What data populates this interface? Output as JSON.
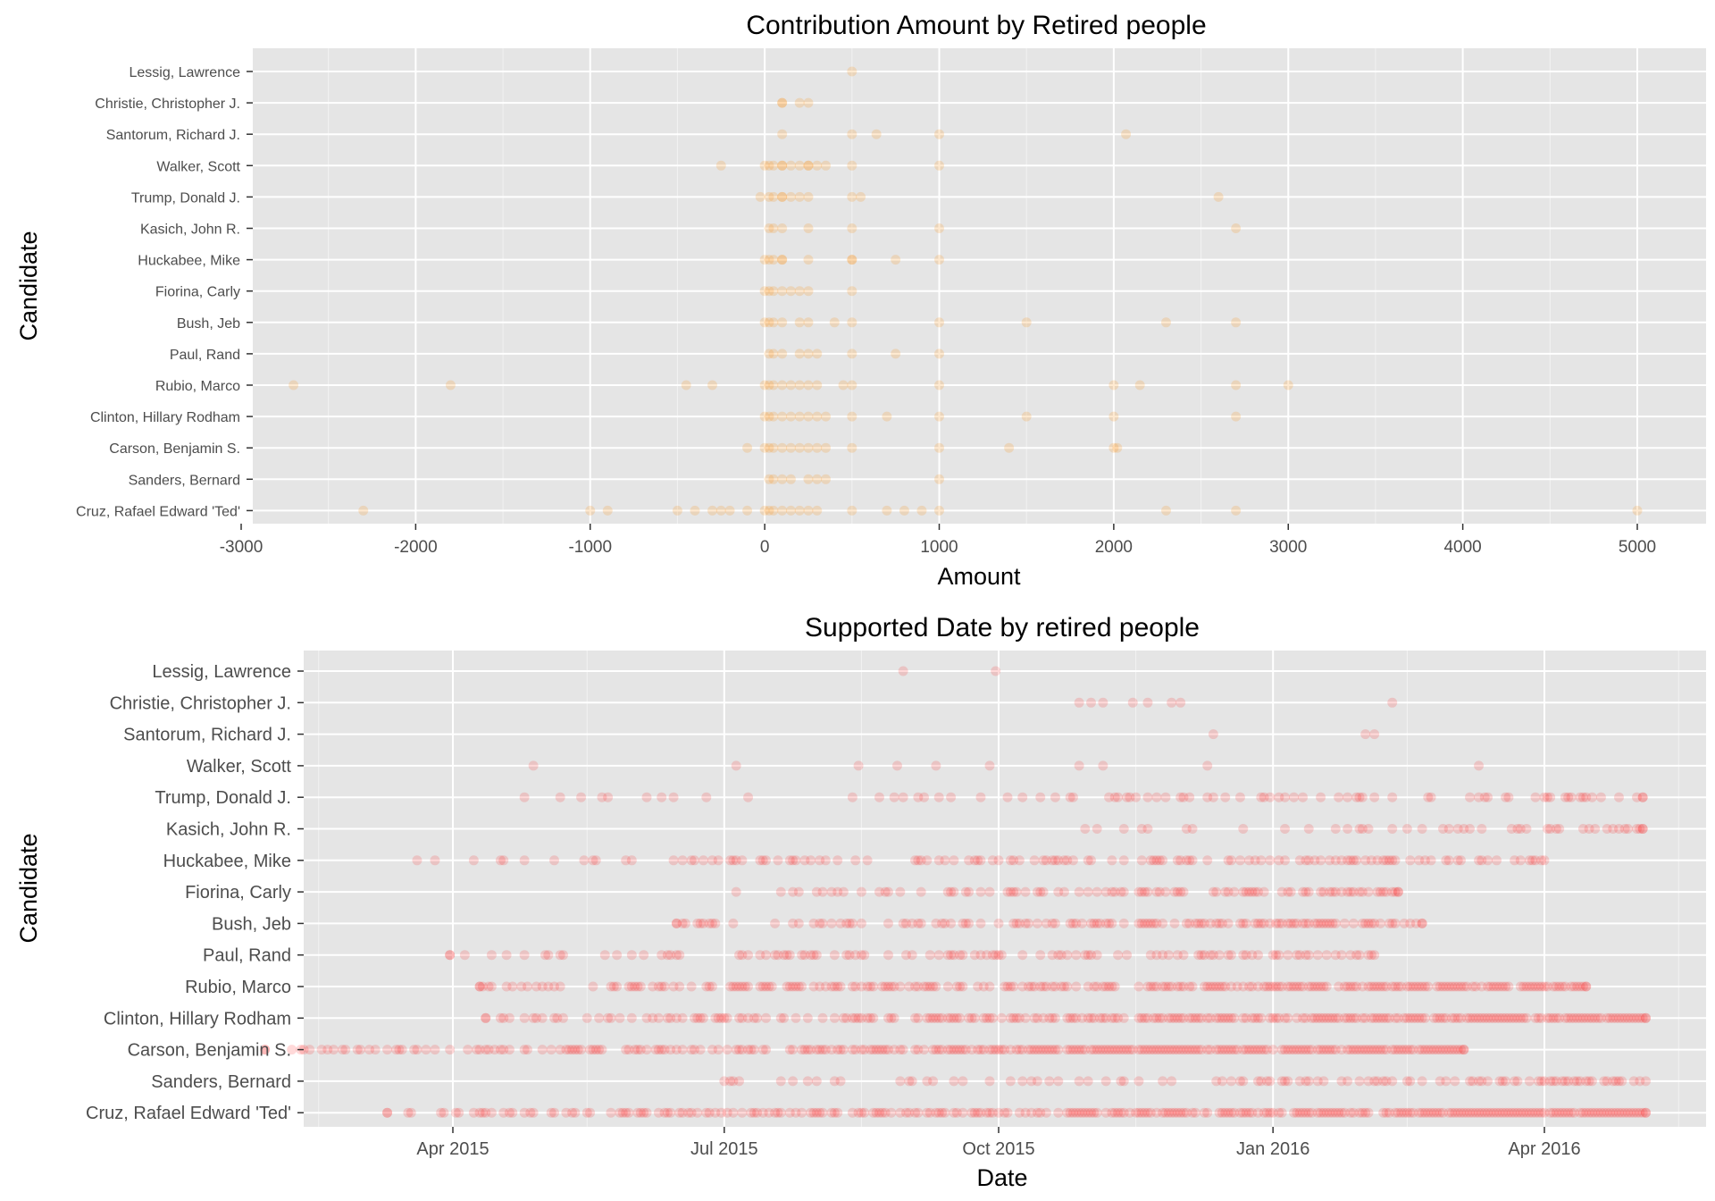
{
  "chart_data": [
    {
      "type": "scatter",
      "title": "Contribution Amount by Retired people",
      "xlabel": "Amount",
      "ylabel": "Candidate",
      "xlim": [
        -3000,
        5000
      ],
      "xticks": [
        -3000,
        -2000,
        -1000,
        0,
        1000,
        2000,
        3000,
        4000,
        5000
      ],
      "grid": true,
      "point_color": "#ff8c00",
      "categories": [
        "Cruz, Rafael Edward 'Ted'",
        "Sanders, Bernard",
        "Carson, Benjamin S.",
        "Clinton, Hillary Rodham",
        "Rubio, Marco",
        "Paul, Rand",
        "Bush, Jeb",
        "Fiorina, Carly",
        "Huckabee, Mike",
        "Kasich, John R.",
        "Trump, Donald J.",
        "Walker, Scott",
        "Santorum, Richard J.",
        "Christie, Christopher J.",
        "Lessig, Lawrence"
      ],
      "points": [
        {
          "candidate": "Lessig, Lawrence",
          "x": [
            500
          ]
        },
        {
          "candidate": "Christie, Christopher J.",
          "x": [
            100,
            100,
            200,
            250
          ]
        },
        {
          "candidate": "Santorum, Richard J.",
          "x": [
            100,
            500,
            640,
            1000,
            2070
          ]
        },
        {
          "candidate": "Walker, Scott",
          "x": [
            -250,
            0,
            25,
            50,
            100,
            100,
            150,
            200,
            250,
            250,
            300,
            350,
            500,
            1000
          ]
        },
        {
          "candidate": "Trump, Donald J.",
          "x": [
            -25,
            25,
            50,
            100,
            100,
            150,
            200,
            250,
            500,
            550,
            2600
          ]
        },
        {
          "candidate": "Kasich, John R.",
          "x": [
            25,
            50,
            100,
            250,
            500,
            1000,
            2700
          ]
        },
        {
          "candidate": "Huckabee, Mike",
          "x": [
            0,
            25,
            50,
            100,
            100,
            250,
            500,
            500,
            750,
            1000
          ]
        },
        {
          "candidate": "Fiorina, Carly",
          "x": [
            0,
            25,
            50,
            100,
            150,
            200,
            250,
            500
          ]
        },
        {
          "candidate": "Bush, Jeb",
          "x": [
            0,
            25,
            50,
            100,
            200,
            250,
            400,
            500,
            1000,
            1500,
            2300,
            2700
          ]
        },
        {
          "candidate": "Paul, Rand",
          "x": [
            25,
            50,
            100,
            200,
            250,
            300,
            500,
            750,
            1000
          ]
        },
        {
          "candidate": "Rubio, Marco",
          "x": [
            -2700,
            -1800,
            -450,
            -300,
            0,
            25,
            50,
            100,
            150,
            200,
            250,
            300,
            450,
            500,
            1000,
            2000,
            2150,
            2700,
            3000
          ]
        },
        {
          "candidate": "Clinton, Hillary Rodham",
          "x": [
            0,
            25,
            50,
            100,
            150,
            200,
            250,
            300,
            350,
            500,
            700,
            1000,
            1500,
            2000,
            2700
          ]
        },
        {
          "candidate": "Carson, Benjamin S.",
          "x": [
            -100,
            0,
            25,
            50,
            100,
            150,
            200,
            250,
            300,
            350,
            500,
            1000,
            1400,
            2000,
            2020
          ]
        },
        {
          "candidate": "Sanders, Bernard",
          "x": [
            25,
            50,
            100,
            150,
            250,
            300,
            350,
            1000
          ]
        },
        {
          "candidate": "Cruz, Rafael Edward 'Ted'",
          "x": [
            -2300,
            -1000,
            -900,
            -500,
            -400,
            -300,
            -250,
            -200,
            -100,
            0,
            25,
            50,
            100,
            150,
            200,
            250,
            300,
            500,
            700,
            800,
            900,
            1000,
            2300,
            2700,
            5000
          ]
        }
      ]
    },
    {
      "type": "scatter",
      "title": "Supported Date by retired people",
      "xlabel": "Date",
      "ylabel": "Candidate",
      "xlim": [
        "2015-01-24",
        "2016-05-15"
      ],
      "xticks": [
        "2015-04-01",
        "2015-07-01",
        "2015-10-01",
        "2016-01-01",
        "2016-04-01"
      ],
      "xticklabels": [
        "Apr 2015",
        "Jul 2015",
        "Oct 2015",
        "Jan 2016",
        "Apr 2016"
      ],
      "grid": true,
      "point_color": "#ff0000",
      "categories": [
        "Cruz, Rafael Edward 'Ted'",
        "Sanders, Bernard",
        "Carson, Benjamin S.",
        "Clinton, Hillary Rodham",
        "Rubio, Marco",
        "Paul, Rand",
        "Bush, Jeb",
        "Fiorina, Carly",
        "Huckabee, Mike",
        "Kasich, John R.",
        "Trump, Donald J.",
        "Walker, Scott",
        "Santorum, Richard J.",
        "Christie, Christopher J.",
        "Lessig, Lawrence"
      ],
      "ranges": [
        {
          "candidate": "Lessig, Lawrence",
          "start": "2015-08-30",
          "end": "2015-09-30",
          "dates": [
            "2015-08-30",
            "2015-09-30"
          ]
        },
        {
          "candidate": "Christie, Christopher J.",
          "start": "2015-10-28",
          "end": "2016-02-10",
          "dates": [
            "2015-10-28",
            "2015-11-01",
            "2015-11-05",
            "2015-11-15",
            "2015-11-20",
            "2015-11-28",
            "2015-12-01",
            "2016-02-10"
          ]
        },
        {
          "candidate": "Santorum, Richard J.",
          "start": "2015-12-12",
          "end": "2016-02-04",
          "dates": [
            "2015-12-12",
            "2016-02-01",
            "2016-02-04"
          ]
        },
        {
          "candidate": "Walker, Scott",
          "start": "2015-04-28",
          "end": "2016-03-10",
          "dates": [
            "2015-04-28",
            "2015-07-05",
            "2015-08-15",
            "2015-08-28",
            "2015-09-10",
            "2015-09-28",
            "2015-10-28",
            "2015-11-05",
            "2015-12-10",
            "2016-03-10"
          ]
        },
        {
          "candidate": "Trump, Donald J.",
          "start": "2015-04-25",
          "end": "2016-05-04",
          "density": 0.3
        },
        {
          "candidate": "Kasich, John R.",
          "start": "2015-10-30",
          "end": "2016-05-04",
          "density": 0.3
        },
        {
          "candidate": "Huckabee, Mike",
          "start": "2015-03-20",
          "end": "2016-04-01",
          "density": 0.5
        },
        {
          "candidate": "Fiorina, Carly",
          "start": "2015-07-05",
          "end": "2016-02-12",
          "density": 0.6
        },
        {
          "candidate": "Bush, Jeb",
          "start": "2015-06-15",
          "end": "2016-02-20",
          "density": 0.6
        },
        {
          "candidate": "Paul, Rand",
          "start": "2015-03-31",
          "end": "2016-02-04",
          "density": 0.45
        },
        {
          "candidate": "Rubio, Marco",
          "start": "2015-04-10",
          "end": "2016-04-15",
          "density": 0.85
        },
        {
          "candidate": "Clinton, Hillary Rodham",
          "start": "2015-04-12",
          "end": "2016-05-05",
          "density": 0.9
        },
        {
          "candidate": "Carson, Benjamin S.",
          "start": "2015-01-28",
          "end": "2016-03-05",
          "density": 1.0
        },
        {
          "candidate": "Sanders, Bernard",
          "start": "2015-07-01",
          "end": "2016-05-05",
          "density": 0.55
        },
        {
          "candidate": "Cruz, Rafael Edward 'Ted'",
          "start": "2015-03-10",
          "end": "2016-05-05",
          "density": 1.0
        }
      ]
    }
  ]
}
